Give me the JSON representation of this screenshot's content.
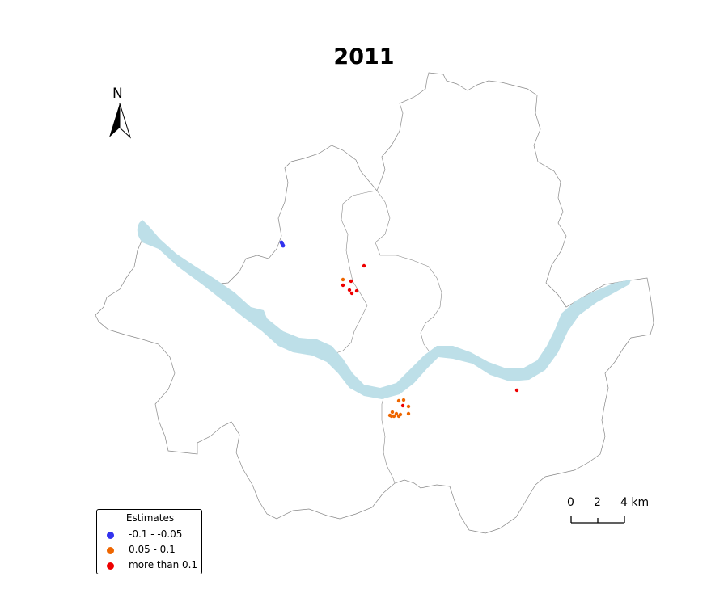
{
  "title": "2011",
  "north_arrow": {
    "label": "N",
    "icon": "north-arrow-icon"
  },
  "legend": {
    "title": "Estimates",
    "items": [
      {
        "label": "-0.1 - -0.05",
        "color": "#3333ee"
      },
      {
        "label": "0.05 - 0.1",
        "color": "#ee6600"
      },
      {
        "label": "more than 0.1",
        "color": "#ee0000"
      }
    ]
  },
  "scale_bar": {
    "ticks": [
      "0",
      "2",
      "4 km"
    ]
  },
  "colors": {
    "river": "#bddfe8",
    "boundary": "#777777"
  },
  "points": {
    "blue_count": 3,
    "orange_count": 12,
    "red_count": 8
  }
}
